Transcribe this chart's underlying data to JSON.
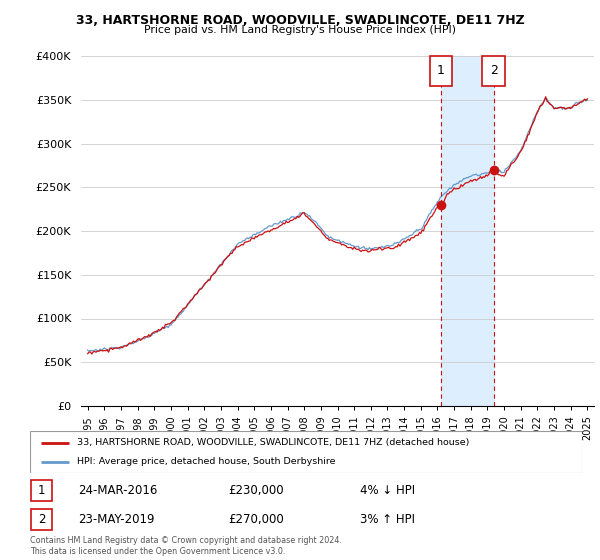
{
  "title": "33, HARTSHORNE ROAD, WOODVILLE, SWADLINCOTE, DE11 7HZ",
  "subtitle": "Price paid vs. HM Land Registry's House Price Index (HPI)",
  "legend_line1": "33, HARTSHORNE ROAD, WOODVILLE, SWADLINCOTE, DE11 7HZ (detached house)",
  "legend_line2": "HPI: Average price, detached house, South Derbyshire",
  "sale1_date": "24-MAR-2016",
  "sale1_price": 230000,
  "sale1_label": "1",
  "sale1_hpi_text": "4% ↓ HPI",
  "sale2_date": "23-MAY-2019",
  "sale2_price": 270000,
  "sale2_label": "2",
  "sale2_hpi_text": "3% ↑ HPI",
  "footnote": "Contains HM Land Registry data © Crown copyright and database right 2024.\nThis data is licensed under the Open Government Licence v3.0.",
  "ylim": [
    0,
    400000
  ],
  "yticks": [
    0,
    50000,
    100000,
    150000,
    200000,
    250000,
    300000,
    350000,
    400000
  ],
  "sale1_x": 2016.21,
  "sale2_x": 2019.37,
  "line_color_red": "#cc1111",
  "line_color_blue": "#6699cc",
  "shade_color": "#ddeeff",
  "vline_color": "#cc1111",
  "background_color": "#ffffff",
  "grid_color": "#cccccc",
  "xlim_left": 1994.6,
  "xlim_right": 2025.4
}
